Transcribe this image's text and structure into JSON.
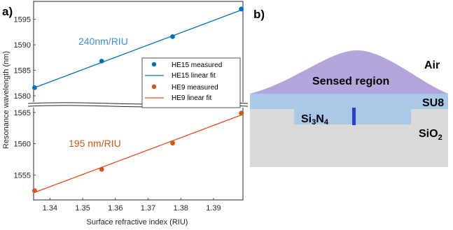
{
  "panel_a_label": "a)",
  "panel_b_label": "b)",
  "chart_data": {
    "type": "line",
    "xlabel": "Surface refractive index (RIU)",
    "ylabel": "Resonance wavelength (nm)",
    "xlim": [
      1.335,
      1.399
    ],
    "x_ticks": [
      "1.34",
      "1.35",
      "1.36",
      "1.37",
      "1.38",
      "1.39"
    ],
    "y_ticks_upper": [
      "1580",
      "1585",
      "1590",
      "1595"
    ],
    "y_ticks_lower": [
      "1555",
      "1560",
      "1565"
    ],
    "y_ticks_upper_values": [
      1580,
      1585,
      1590,
      1595
    ],
    "y_ticks_lower_values": [
      1555,
      1560,
      1565
    ],
    "ylim_upper": [
      1578.5,
      1598.5
    ],
    "ylim_lower": [
      1551.0,
      1566.0
    ],
    "axis_break": true,
    "legend_position": "right",
    "grid": false,
    "series": [
      {
        "name": "HE15 measured",
        "kind": "scatter",
        "color": "#0072BD",
        "x": [
          1.3353,
          1.3558,
          1.3775,
          1.3985
        ],
        "y": [
          1581.6,
          1586.8,
          1591.6,
          1597.0
        ]
      },
      {
        "name": "HE15 linear fit",
        "kind": "line",
        "color": "#0072BD",
        "x": [
          1.3353,
          1.3985
        ],
        "y": [
          1581.6,
          1596.8
        ]
      },
      {
        "name": "HE9 measured",
        "kind": "scatter",
        "color": "#D95319",
        "x": [
          1.3353,
          1.3558,
          1.3775,
          1.3985
        ],
        "y": [
          1552.5,
          1555.9,
          1560.1,
          1564.9
        ]
      },
      {
        "name": "HE9 linear fit",
        "kind": "line",
        "color": "#D95319",
        "x": [
          1.3353,
          1.3985
        ],
        "y": [
          1552.2,
          1564.6
        ]
      }
    ],
    "annotations": [
      {
        "text": "240nm/RIU",
        "color": "#3A8FD0"
      },
      {
        "text": "195 nm/RIU",
        "color": "#D95319"
      }
    ]
  },
  "cross_section": {
    "labels": {
      "air": "Air",
      "sensed_region": "Sensed region",
      "su8": "SU8",
      "si3n4_base": "Si",
      "si3n4_sub1": "3",
      "si3n4_mid": "N",
      "si3n4_sub2": "4",
      "sio2_base": "SiO",
      "sio2_sub": "2"
    },
    "colors": {
      "sensed_region": "#B3A6DD",
      "su8": "#A9C9E6",
      "core": "#A9C9E6",
      "sio2": "#D9D9D9",
      "core_marker": "#2B3FC9",
      "core_text": "#2B3FC9"
    }
  }
}
